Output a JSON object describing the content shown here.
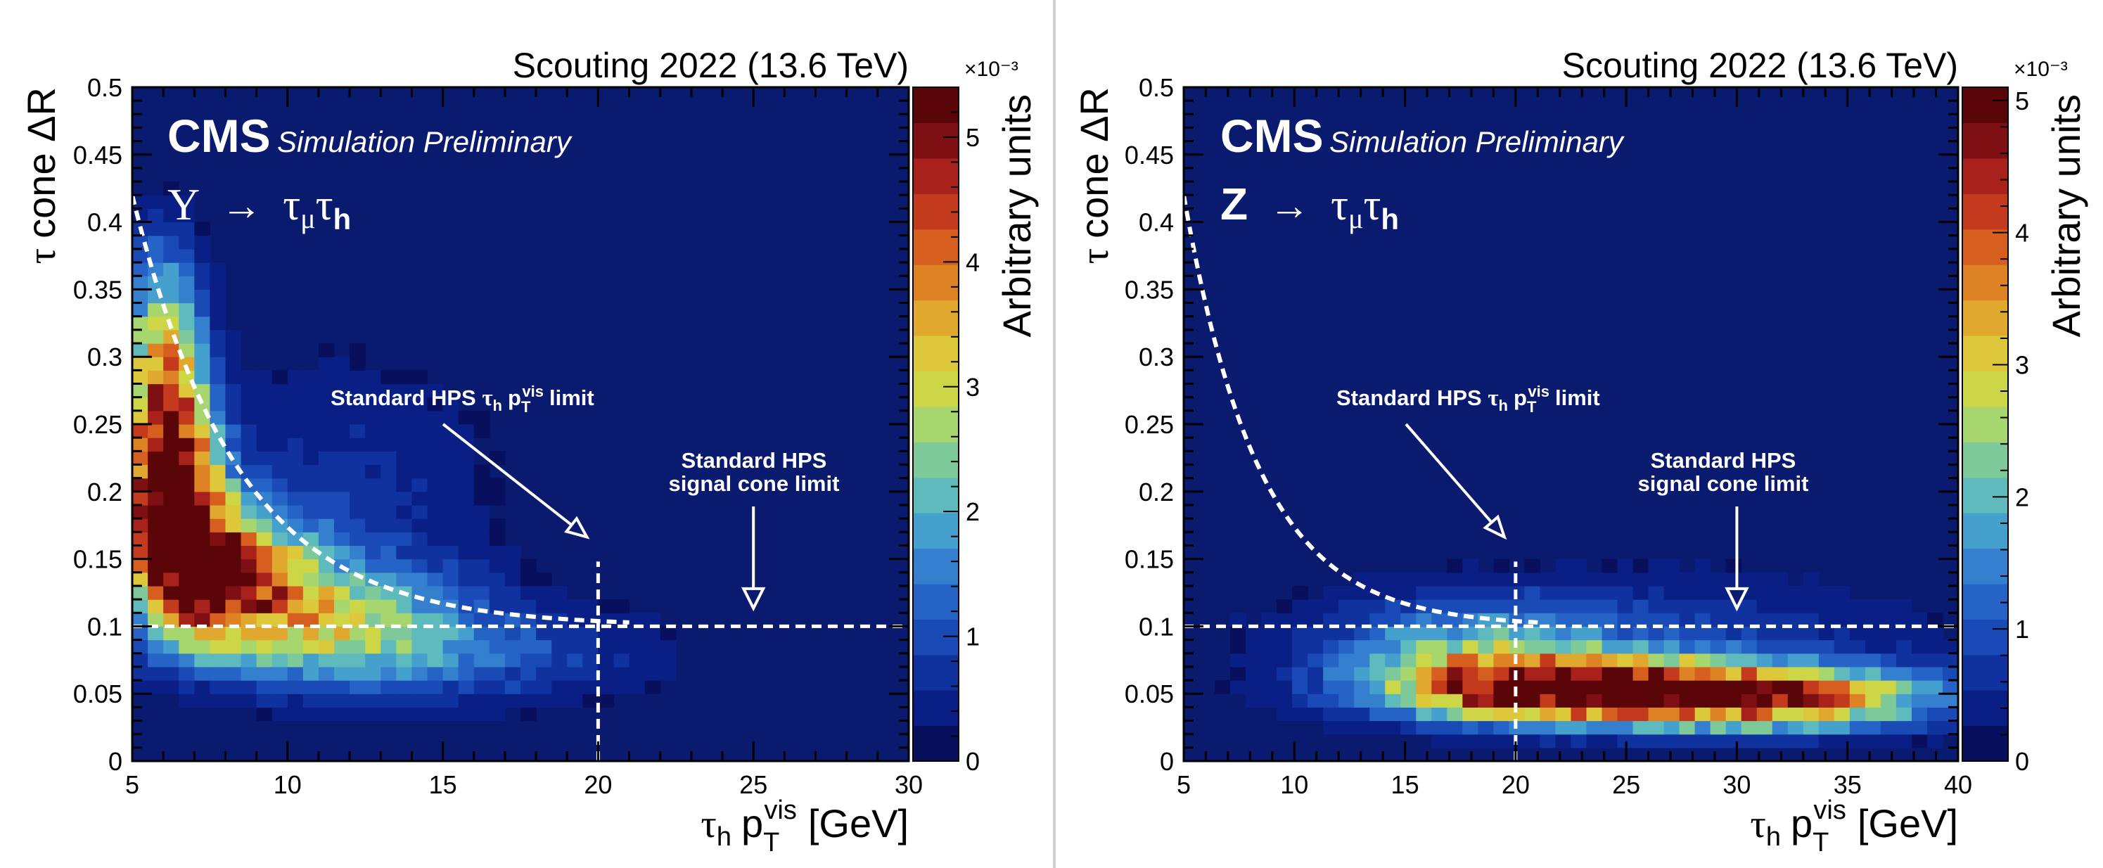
{
  "chart_data": [
    {
      "type": "heatmap",
      "title": "Scouting 2022 (13.6 TeV)",
      "cms_label": "CMS",
      "cms_sublabel": "Simulation Preliminary",
      "process_label": "Υ → τμτh",
      "process_symbol": "Υ",
      "xlabel": "τh pT^vis [GeV]",
      "ylabel": "τ cone ΔR",
      "zlabel": "Arbitrary units",
      "z_exponent_label": "×10⁻³",
      "xlim": [
        5,
        30
      ],
      "ylim": [
        0,
        0.5
      ],
      "zlim": [
        0,
        5.4
      ],
      "x_ticks": [
        5,
        10,
        15,
        20,
        25,
        30
      ],
      "y_ticks": [
        0,
        0.05,
        0.1,
        0.15,
        0.2,
        0.25,
        0.3,
        0.35,
        0.4,
        0.45,
        0.5
      ],
      "z_ticks": [
        0,
        1,
        2,
        3,
        4,
        5
      ],
      "bins": {
        "nx": 50,
        "ny": 50
      },
      "hotspots": [
        {
          "x": 6.3,
          "y": 0.19,
          "peak": 5.2,
          "sigma_x": 1.1,
          "sigma_y": 0.05
        },
        {
          "x": 6.0,
          "y": 0.29,
          "peak": 3.6,
          "sigma_x": 0.9,
          "sigma_y": 0.06
        },
        {
          "x": 8.0,
          "y": 0.14,
          "peak": 3.8,
          "sigma_x": 1.8,
          "sigma_y": 0.035
        },
        {
          "x": 11.0,
          "y": 0.11,
          "peak": 2.2,
          "sigma_x": 3.0,
          "sigma_y": 0.03
        },
        {
          "x": 15.0,
          "y": 0.08,
          "peak": 1.2,
          "sigma_x": 4.5,
          "sigma_y": 0.025
        },
        {
          "x": 12.0,
          "y": 0.2,
          "peak": 0.6,
          "sigma_x": 3.5,
          "sigma_y": 0.08
        }
      ],
      "curve": "0.1 + 0.32 * exp(-(x - 5) / 3.4)",
      "reference_lines": {
        "pt_cut": 20,
        "cone_limit": 0.1
      },
      "annotations": [
        {
          "text": "Standard HPS τh pT^vis limit",
          "arrow_to": [
            20,
            0.16
          ]
        },
        {
          "text": "Standard HPS signal cone limit",
          "arrow_to": [
            25,
            0.105
          ]
        }
      ],
      "annotation_pt_text": "Standard HPS",
      "annotation_pt_suffix": "limit",
      "annotation_cone_line1": "Standard HPS",
      "annotation_cone_line2": "signal cone limit"
    },
    {
      "type": "heatmap",
      "title": "Scouting 2022 (13.6 TeV)",
      "cms_label": "CMS",
      "cms_sublabel": "Simulation Preliminary",
      "process_label": "Z → τμτh",
      "process_symbol": "Z",
      "xlabel": "τh pT^vis [GeV]",
      "ylabel": "τ cone ΔR",
      "zlabel": "Arbitrary units",
      "z_exponent_label": "×10⁻³",
      "xlim": [
        5,
        40
      ],
      "ylim": [
        0,
        0.5
      ],
      "zlim": [
        0,
        5.1
      ],
      "x_ticks": [
        5,
        10,
        15,
        20,
        25,
        30,
        35,
        40
      ],
      "y_ticks": [
        0,
        0.05,
        0.1,
        0.15,
        0.2,
        0.25,
        0.3,
        0.35,
        0.4,
        0.45,
        0.5
      ],
      "z_ticks": [
        0,
        1,
        2,
        3,
        4,
        5
      ],
      "bins": {
        "nx": 50,
        "ny": 50
      },
      "hotspots": [
        {
          "x": 24.0,
          "y": 0.052,
          "peak": 5.1,
          "sigma_x": 6.0,
          "sigma_y": 0.016
        },
        {
          "x": 33.0,
          "y": 0.045,
          "peak": 2.6,
          "sigma_x": 5.0,
          "sigma_y": 0.016
        },
        {
          "x": 18.0,
          "y": 0.075,
          "peak": 1.6,
          "sigma_x": 4.0,
          "sigma_y": 0.025
        },
        {
          "x": 24.0,
          "y": 0.09,
          "peak": 0.9,
          "sigma_x": 10.0,
          "sigma_y": 0.035
        }
      ],
      "curve": "0.1 + 0.32 * exp(-(x - 5) / 3.4)",
      "reference_lines": {
        "pt_cut": 20,
        "cone_limit": 0.1
      },
      "annotations": [
        {
          "text": "Standard HPS τh pT^vis limit",
          "arrow_to": [
            20,
            0.16
          ]
        },
        {
          "text": "Standard HPS signal cone limit",
          "arrow_to": [
            30,
            0.105
          ]
        }
      ],
      "annotation_pt_text": "Standard HPS",
      "annotation_pt_suffix": "limit",
      "annotation_cone_line1": "Standard HPS",
      "annotation_cone_line2": "signal cone limit"
    }
  ],
  "colors": {
    "background": "#0a1a6e",
    "axis": "#000000",
    "label_white": "#ffffff",
    "palette": [
      "#08105e",
      "#0a1f86",
      "#10329e",
      "#1a4ab5",
      "#2563c6",
      "#3480cf",
      "#45a0cd",
      "#5fbabd",
      "#7ec99a",
      "#a8d66e",
      "#ccd646",
      "#dcc83a",
      "#e0a82f",
      "#dd8324",
      "#d65e1f",
      "#c43a1c",
      "#a8211a",
      "#7e0f12",
      "#5a0608"
    ]
  }
}
